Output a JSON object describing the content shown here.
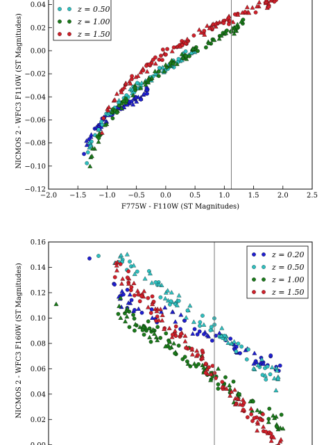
{
  "chart_data": [
    {
      "type": "scatter",
      "xlabel": "F775W - F110W (ST Magnitudes)",
      "ylabel": "NICMOS 2 - WFC3 F110W (ST Magnitudes)",
      "xlim": [
        -2.0,
        2.5
      ],
      "ylim": [
        -0.12,
        0.05
      ],
      "xticks": [
        "−2.0",
        "−1.5",
        "−1.0",
        "−0.5",
        "0.0",
        "0.5",
        "1.0",
        "1.5",
        "2.0",
        "2.5"
      ],
      "yticks": [
        "−0.12",
        "−0.10",
        "−0.08",
        "−0.06",
        "−0.04",
        "−0.02",
        "0.00",
        "0.02",
        "0.04"
      ],
      "vline_x": 1.12,
      "grid": false,
      "legend_position": "top-left",
      "series": [
        {
          "name": "z=0.20",
          "color": "#1f1fd0",
          "trend": {
            "x0": -1.4,
            "x1": -0.3,
            "y_at_x0": -0.095,
            "y_at_x1": -0.035
          }
        },
        {
          "name": "z=0.50",
          "color": "#2fbfbf",
          "trend": {
            "x0": -1.35,
            "x1": 0.5,
            "y_at_x0": -0.1,
            "y_at_x1": 0.0
          }
        },
        {
          "name": "z=1.00",
          "color": "#1a7a1a",
          "trend": {
            "x0": -1.3,
            "x1": 1.4,
            "y_at_x0": -0.105,
            "y_at_x1": 0.025
          }
        },
        {
          "name": "z=1.50",
          "color": "#d0202a",
          "trend": {
            "x0": -1.1,
            "x1": 1.9,
            "y_at_x0": -0.075,
            "y_at_x1": 0.045
          }
        }
      ],
      "legend_visible": [
        {
          "label": "z = 0.50",
          "color": "#2fbfbf"
        },
        {
          "label": "z = 1.00",
          "color": "#1a7a1a"
        },
        {
          "label": "z = 1.50",
          "color": "#d0202a"
        }
      ]
    },
    {
      "type": "scatter",
      "xlabel": "",
      "ylabel": "NICMOS 2 - WFC3 F160W (ST Magnitudes)",
      "ylim": [
        -0.01,
        0.16
      ],
      "yticks": [
        "0.00",
        "0.02",
        "0.04",
        "0.06",
        "0.08",
        "0.10",
        "0.12",
        "0.14",
        "0.16"
      ],
      "grid": false,
      "legend_position": "top-right",
      "series": [
        {
          "name": "z=0.20",
          "color": "#1f1fd0",
          "trend": {
            "y0": 0.12,
            "y1": 0.06
          }
        },
        {
          "name": "z=0.50",
          "color": "#2fbfbf",
          "trend": {
            "y0": 0.15,
            "y1": 0.05
          }
        },
        {
          "name": "z=1.00",
          "color": "#1a7a1a",
          "trend": {
            "y0": 0.11,
            "y1": 0.015
          }
        },
        {
          "name": "z=1.50",
          "color": "#d0202a",
          "trend": {
            "y0": 0.14,
            "y1": 0.0
          }
        }
      ],
      "legend_visible": [
        {
          "label": "z = 0.20",
          "color": "#1f1fd0"
        },
        {
          "label": "z = 0.50",
          "color": "#2fbfbf"
        },
        {
          "label": "z = 1.00",
          "color": "#1a7a1a"
        },
        {
          "label": "z = 1.50",
          "color": "#d0202a"
        }
      ]
    }
  ]
}
